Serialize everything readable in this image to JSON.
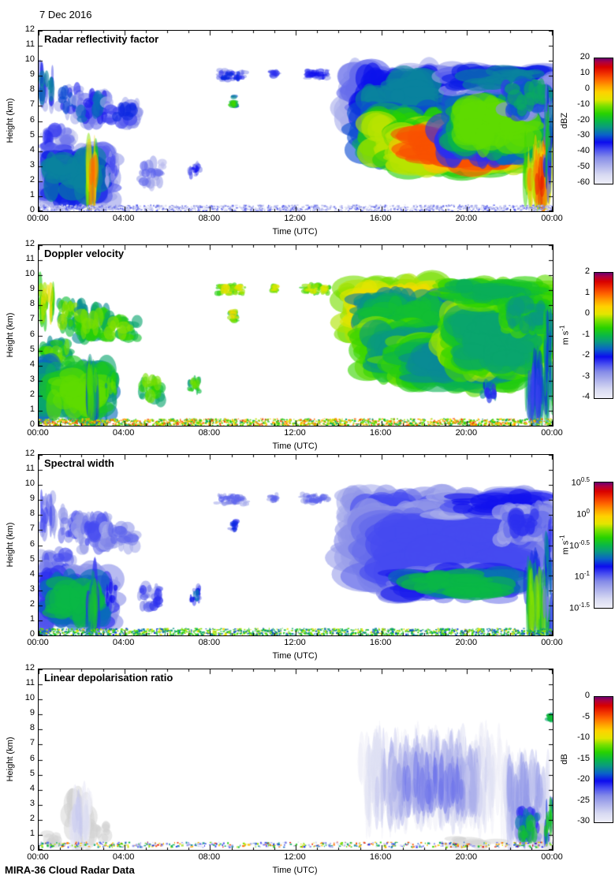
{
  "page": {
    "date_title": "7 Dec 2016",
    "footer": "MIRA-36 Cloud Radar Data",
    "background": "#ffffff",
    "frame_color": "#000000"
  },
  "colormap_stops": [
    [
      0.0,
      "#eeeef8"
    ],
    [
      0.07,
      "#d8daf2"
    ],
    [
      0.14,
      "#b0b4ec"
    ],
    [
      0.21,
      "#868ce8"
    ],
    [
      0.27,
      "#4a50f0"
    ],
    [
      0.33,
      "#0c0cee"
    ],
    [
      0.39,
      "#0a62c8"
    ],
    [
      0.45,
      "#0a9a80"
    ],
    [
      0.5,
      "#0ab846"
    ],
    [
      0.56,
      "#28d200"
    ],
    [
      0.62,
      "#7ce000"
    ],
    [
      0.67,
      "#e2e600"
    ],
    [
      0.73,
      "#ffd200"
    ],
    [
      0.78,
      "#ffa000"
    ],
    [
      0.83,
      "#ff6600"
    ],
    [
      0.88,
      "#f03000"
    ],
    [
      0.93,
      "#d80000"
    ],
    [
      0.97,
      "#ae0040"
    ],
    [
      1.0,
      "#6a0070"
    ]
  ],
  "feature_format": "[t0_hours, t1_hours, z0_km, z1_km, value_edge, value_core, kind(cloud|streak|thin|speckle|gray), density]",
  "chart_data": [
    {
      "type": "heatmap",
      "title": "Radar reflectivity factor",
      "xlabel": "Time (UTC)",
      "ylabel": "Height (km)",
      "x_range_hours": [
        0,
        24
      ],
      "ylim_km": [
        0,
        12
      ],
      "xticks": [
        "00:00",
        "04:00",
        "08:00",
        "12:00",
        "16:00",
        "20:00",
        "00:00"
      ],
      "yticks": [
        0,
        1,
        2,
        3,
        4,
        5,
        6,
        7,
        8,
        9,
        10,
        11,
        12
      ],
      "colorbar": {
        "unit": {
          "text": "dBZ"
        },
        "min": -60,
        "max": 20,
        "ticks": [
          {
            "label": "20",
            "v": 20
          },
          {
            "label": "10",
            "v": 10
          },
          {
            "label": "0",
            "v": 0
          },
          {
            "label": "-10",
            "v": -10
          },
          {
            "label": "-20",
            "v": -20
          },
          {
            "label": "-30",
            "v": -30
          },
          {
            "label": "-40",
            "v": -40
          },
          {
            "label": "-50",
            "v": -50
          },
          {
            "label": "-60",
            "v": -60
          }
        ]
      },
      "features": [
        [
          0,
          0.75,
          6.8,
          9.6,
          -48,
          -26
        ],
        [
          0.9,
          2.0,
          6.4,
          8.3,
          -48,
          -30
        ],
        [
          1.7,
          3.3,
          5.7,
          7.9,
          -48,
          -28
        ],
        [
          3.0,
          4.7,
          5.7,
          7.3,
          -48,
          -32
        ],
        [
          0,
          1.7,
          3.9,
          5.7,
          -52,
          -36
        ],
        [
          0,
          3.4,
          0.7,
          4.1,
          -46,
          -26
        ],
        [
          2.25,
          2.75,
          0.3,
          3.7,
          -18,
          6,
          "streak"
        ],
        [
          3.1,
          3.7,
          1.9,
          3.7,
          -50,
          -38
        ],
        [
          4.6,
          5.8,
          1.7,
          3.3,
          -50,
          -40
        ],
        [
          7.0,
          7.6,
          2.2,
          3.2,
          -48,
          -34
        ],
        [
          8.3,
          9.7,
          8.7,
          9.4,
          -46,
          -32,
          "thin"
        ],
        [
          10.8,
          11.15,
          8.9,
          9.35,
          -46,
          -36,
          "thin"
        ],
        [
          12.3,
          13.6,
          8.8,
          9.4,
          -46,
          -34,
          "thin"
        ],
        [
          8.95,
          9.25,
          6.9,
          7.7,
          -30,
          -14,
          "thin"
        ],
        [
          14.4,
          19.2,
          5.8,
          9.3,
          -48,
          -26
        ],
        [
          15.0,
          19.5,
          3.4,
          6.6,
          -30,
          -8
        ],
        [
          16.5,
          22.6,
          2.7,
          5.6,
          -16,
          8
        ],
        [
          19.0,
          23.6,
          3.8,
          7.6,
          -36,
          -12
        ],
        [
          18.8,
          24,
          8.0,
          9.6,
          -46,
          -26
        ],
        [
          21.6,
          24,
          6.3,
          8.6,
          -44,
          -22
        ],
        [
          22.7,
          24,
          0.7,
          4.2,
          -14,
          6,
          "streak"
        ],
        [
          23.1,
          23.65,
          0.25,
          3.3,
          -8,
          12,
          "streak"
        ],
        [
          23.6,
          24,
          2.0,
          7.2,
          -40,
          -18
        ],
        [
          0,
          24,
          0.04,
          0.45,
          -58,
          -38,
          "speckle",
          0.5
        ]
      ]
    },
    {
      "type": "heatmap",
      "title": "Doppler velocity",
      "xlabel": "Time (UTC)",
      "ylabel": "Height (km)",
      "x_range_hours": [
        0,
        24
      ],
      "ylim_km": [
        0,
        12
      ],
      "xticks": [
        "00:00",
        "04:00",
        "08:00",
        "12:00",
        "16:00",
        "20:00",
        "00:00"
      ],
      "yticks": [
        0,
        1,
        2,
        3,
        4,
        5,
        6,
        7,
        8,
        9,
        10,
        11,
        12
      ],
      "colorbar": {
        "unit": {
          "text": "m s",
          "exp": "-1"
        },
        "min": -4,
        "max": 2,
        "ticks": [
          {
            "label": "2",
            "v": 2
          },
          {
            "label": "1",
            "v": 1
          },
          {
            "label": "0",
            "v": 0
          },
          {
            "label": "-1",
            "v": -1
          },
          {
            "label": "-2",
            "v": -2
          },
          {
            "label": "-3",
            "v": -3
          },
          {
            "label": "-4",
            "v": -4
          }
        ]
      },
      "features": [
        [
          0,
          0.75,
          6.8,
          9.6,
          -0.8,
          0.15
        ],
        [
          0.9,
          2.0,
          6.4,
          8.3,
          -1.3,
          -0.2
        ],
        [
          1.7,
          3.3,
          5.7,
          7.9,
          -1.4,
          -0.3
        ],
        [
          3.0,
          4.7,
          5.7,
          7.3,
          -1.2,
          -0.25
        ],
        [
          0,
          1.7,
          3.9,
          5.7,
          -1.4,
          -0.35
        ],
        [
          0,
          3.4,
          0.7,
          4.1,
          -1.6,
          -0.4
        ],
        [
          2.25,
          2.75,
          0.3,
          3.7,
          -1.8,
          -0.5,
          "streak"
        ],
        [
          3.1,
          3.7,
          1.9,
          3.7,
          -1.3,
          -0.4
        ],
        [
          4.6,
          5.8,
          1.7,
          3.3,
          -1.2,
          -0.3
        ],
        [
          7.0,
          7.6,
          2.2,
          3.2,
          -1.3,
          -0.35
        ],
        [
          8.3,
          9.7,
          8.7,
          9.4,
          -0.7,
          0.1,
          "thin"
        ],
        [
          10.8,
          11.15,
          8.9,
          9.35,
          -0.7,
          0,
          "thin"
        ],
        [
          12.3,
          13.6,
          8.8,
          9.4,
          -0.7,
          0,
          "thin"
        ],
        [
          8.95,
          9.25,
          6.9,
          7.7,
          -1.0,
          0.2,
          "thin"
        ],
        [
          14.4,
          19.2,
          5.8,
          9.3,
          -0.3,
          0.2
        ],
        [
          15.0,
          19.0,
          5.5,
          8.5,
          -1.5,
          -0.9
        ],
        [
          15.0,
          19.5,
          3.4,
          6.6,
          -0.2,
          -1.3
        ],
        [
          16.5,
          22.6,
          2.7,
          5.6,
          -0.4,
          -1.4
        ],
        [
          19.0,
          23.6,
          3.8,
          7.6,
          -0.2,
          -1.2
        ],
        [
          18.8,
          24,
          8.0,
          9.6,
          -0.4,
          -1.1
        ],
        [
          21.6,
          24,
          6.3,
          8.6,
          -0.5,
          -1.3
        ],
        [
          20.7,
          21.4,
          1.6,
          2.8,
          -1.4,
          -2.2
        ],
        [
          22.7,
          24,
          0.7,
          4.2,
          -1.0,
          -2.3,
          "streak"
        ],
        [
          23.6,
          24,
          2.0,
          7.2,
          -0.8,
          -1.8
        ],
        [
          0,
          24,
          0.04,
          0.5,
          -1.3,
          1.3,
          "speckle",
          0.55
        ]
      ]
    },
    {
      "type": "heatmap",
      "title": "Spectral width",
      "xlabel": "Time (UTC)",
      "ylabel": "Height (km)",
      "x_range_hours": [
        0,
        24
      ],
      "ylim_km": [
        0,
        12
      ],
      "scale": "log10",
      "xticks": [
        "00:00",
        "04:00",
        "08:00",
        "12:00",
        "16:00",
        "20:00",
        "00:00"
      ],
      "yticks": [
        0,
        1,
        2,
        3,
        4,
        5,
        6,
        7,
        8,
        9,
        10,
        11,
        12
      ],
      "colorbar": {
        "unit": {
          "text": "m s",
          "exp": "-1"
        },
        "min": -1.5,
        "max": 0.5,
        "ticks": [
          {
            "base": "10",
            "exp": "0.5",
            "v": 0.5
          },
          {
            "base": "10",
            "exp": "0",
            "v": 0
          },
          {
            "base": "10",
            "exp": "-0.5",
            "v": -0.5
          },
          {
            "base": "10",
            "exp": "-1",
            "v": -1
          },
          {
            "base": "10",
            "exp": "-1.5",
            "v": -1.5
          }
        ]
      },
      "features": [
        [
          0,
          0.75,
          6.8,
          9.6,
          -1.2,
          -0.95
        ],
        [
          0.9,
          2.0,
          6.4,
          8.3,
          -1.2,
          -0.95
        ],
        [
          1.7,
          3.3,
          5.7,
          7.9,
          -1.2,
          -0.95
        ],
        [
          3.0,
          4.7,
          5.7,
          7.3,
          -1.2,
          -1.0
        ],
        [
          0,
          1.7,
          3.9,
          5.7,
          -1.2,
          -0.95
        ],
        [
          0,
          3.4,
          0.7,
          4.1,
          -1.1,
          -0.5
        ],
        [
          2.25,
          2.75,
          0.3,
          3.7,
          -0.9,
          -0.45,
          "streak"
        ],
        [
          3.1,
          3.7,
          1.9,
          3.7,
          -1.15,
          -0.85
        ],
        [
          4.6,
          5.8,
          1.7,
          3.3,
          -1.15,
          -0.9
        ],
        [
          7.0,
          7.6,
          2.2,
          3.2,
          -1.1,
          -0.7
        ],
        [
          8.3,
          9.7,
          8.7,
          9.4,
          -1.2,
          -1.0,
          "thin"
        ],
        [
          10.8,
          11.15,
          8.9,
          9.35,
          -1.2,
          -1.0,
          "thin"
        ],
        [
          12.3,
          13.6,
          8.8,
          9.4,
          -1.2,
          -1.0,
          "thin"
        ],
        [
          8.95,
          9.25,
          6.9,
          7.7,
          -1.1,
          -0.8,
          "thin"
        ],
        [
          14.4,
          19.2,
          5.8,
          9.3,
          -1.2,
          -0.95
        ],
        [
          15.0,
          23.2,
          3.4,
          8.0,
          -1.15,
          -0.95
        ],
        [
          16.5,
          22.6,
          2.5,
          4.4,
          -1.05,
          -0.5
        ],
        [
          18.8,
          24,
          8.0,
          9.6,
          -1.2,
          -0.85
        ],
        [
          21.6,
          24,
          6.3,
          8.6,
          -1.2,
          -0.9
        ],
        [
          22.7,
          24,
          0.5,
          4.2,
          -0.8,
          -0.25,
          "streak"
        ],
        [
          23.6,
          24,
          2.0,
          7.2,
          -1.05,
          -0.65
        ],
        [
          0,
          24,
          0.04,
          0.5,
          -0.8,
          -0.1,
          "speckle",
          0.5
        ]
      ]
    },
    {
      "type": "heatmap",
      "title": "Linear depolarisation ratio",
      "xlabel": "Time (UTC)",
      "ylabel": "Height (km)",
      "x_range_hours": [
        0,
        24
      ],
      "ylim_km": [
        0,
        12
      ],
      "xticks": [
        "00:00",
        "04:00",
        "08:00",
        "12:00",
        "16:00",
        "20:00",
        "00:00"
      ],
      "yticks": [
        0,
        1,
        2,
        3,
        4,
        5,
        6,
        7,
        8,
        9,
        10,
        11,
        12
      ],
      "colorbar": {
        "unit": {
          "text": "dB"
        },
        "min": -30,
        "max": 0,
        "ticks": [
          {
            "label": "0",
            "v": 0
          },
          {
            "label": "-5",
            "v": -5
          },
          {
            "label": "-10",
            "v": -10
          },
          {
            "label": "-15",
            "v": -15
          },
          {
            "label": "-20",
            "v": -20
          },
          {
            "label": "-25",
            "v": -25
          },
          {
            "label": "-30",
            "v": -30
          }
        ]
      },
      "features": [
        [
          0.15,
          0.95,
          0.4,
          1.3,
          null,
          null,
          "gray"
        ],
        [
          1.35,
          2.6,
          0.3,
          3.6,
          null,
          null,
          "gray"
        ],
        [
          1.5,
          2.4,
          0.5,
          3.3,
          -30,
          -27,
          "streak"
        ],
        [
          2.65,
          3.25,
          0.7,
          1.7,
          null,
          null,
          "gray"
        ],
        [
          15.0,
          21.6,
          2.5,
          6.9,
          -30,
          -25.5,
          "streak"
        ],
        [
          16.3,
          20.6,
          3.0,
          5.8,
          -27,
          -23,
          "streak"
        ],
        [
          21.6,
          23.95,
          1.0,
          5.6,
          -30,
          -24.5,
          "streak"
        ],
        [
          23.0,
          24,
          0.3,
          1.6,
          null,
          null,
          "gray"
        ],
        [
          19.3,
          21.4,
          0.2,
          0.75,
          null,
          null,
          "gray"
        ],
        [
          22.3,
          23.4,
          0.4,
          2.8,
          -24,
          -14.5
        ],
        [
          23.6,
          24,
          0.4,
          3.2,
          -22,
          -14
        ],
        [
          23.8,
          23.98,
          8.6,
          9.0,
          -17,
          -14.5,
          "thin"
        ],
        [
          0,
          24,
          0.22,
          0.55,
          -30,
          -2,
          "speckle",
          0.28
        ]
      ]
    }
  ]
}
